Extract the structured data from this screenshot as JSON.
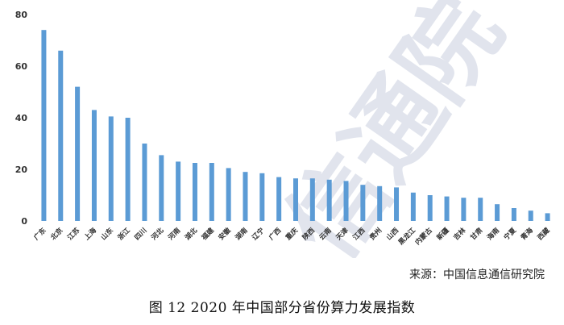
{
  "chart_data": {
    "type": "bar",
    "categories": [
      "广东",
      "北京",
      "江苏",
      "上海",
      "山东",
      "浙江",
      "四川",
      "河北",
      "河南",
      "湖北",
      "福建",
      "安徽",
      "湖南",
      "辽宁",
      "广西",
      "重庆",
      "陕西",
      "云南",
      "天津",
      "江西",
      "贵州",
      "山西",
      "黑龙江",
      "内蒙古",
      "新疆",
      "吉林",
      "甘肃",
      "海南",
      "宁夏",
      "青海",
      "西藏"
    ],
    "values": [
      74,
      66,
      52,
      43,
      40.5,
      40,
      30,
      25.5,
      23,
      22.5,
      22.5,
      20.5,
      19,
      18.5,
      17,
      16.5,
      16.5,
      16,
      15.5,
      14,
      13.5,
      13,
      11,
      10,
      9.5,
      9,
      9,
      6.5,
      5,
      4,
      3
    ],
    "y_ticks": [
      0,
      20,
      40,
      60,
      80
    ],
    "ylim": [
      0,
      80
    ],
    "bar_color": "#5b9bd5",
    "grid": false
  },
  "source_text": "来源：中国信息通信研究院",
  "caption": "图 12 2020 年中国部分省份算力发展指数",
  "watermark_text": "信通院"
}
